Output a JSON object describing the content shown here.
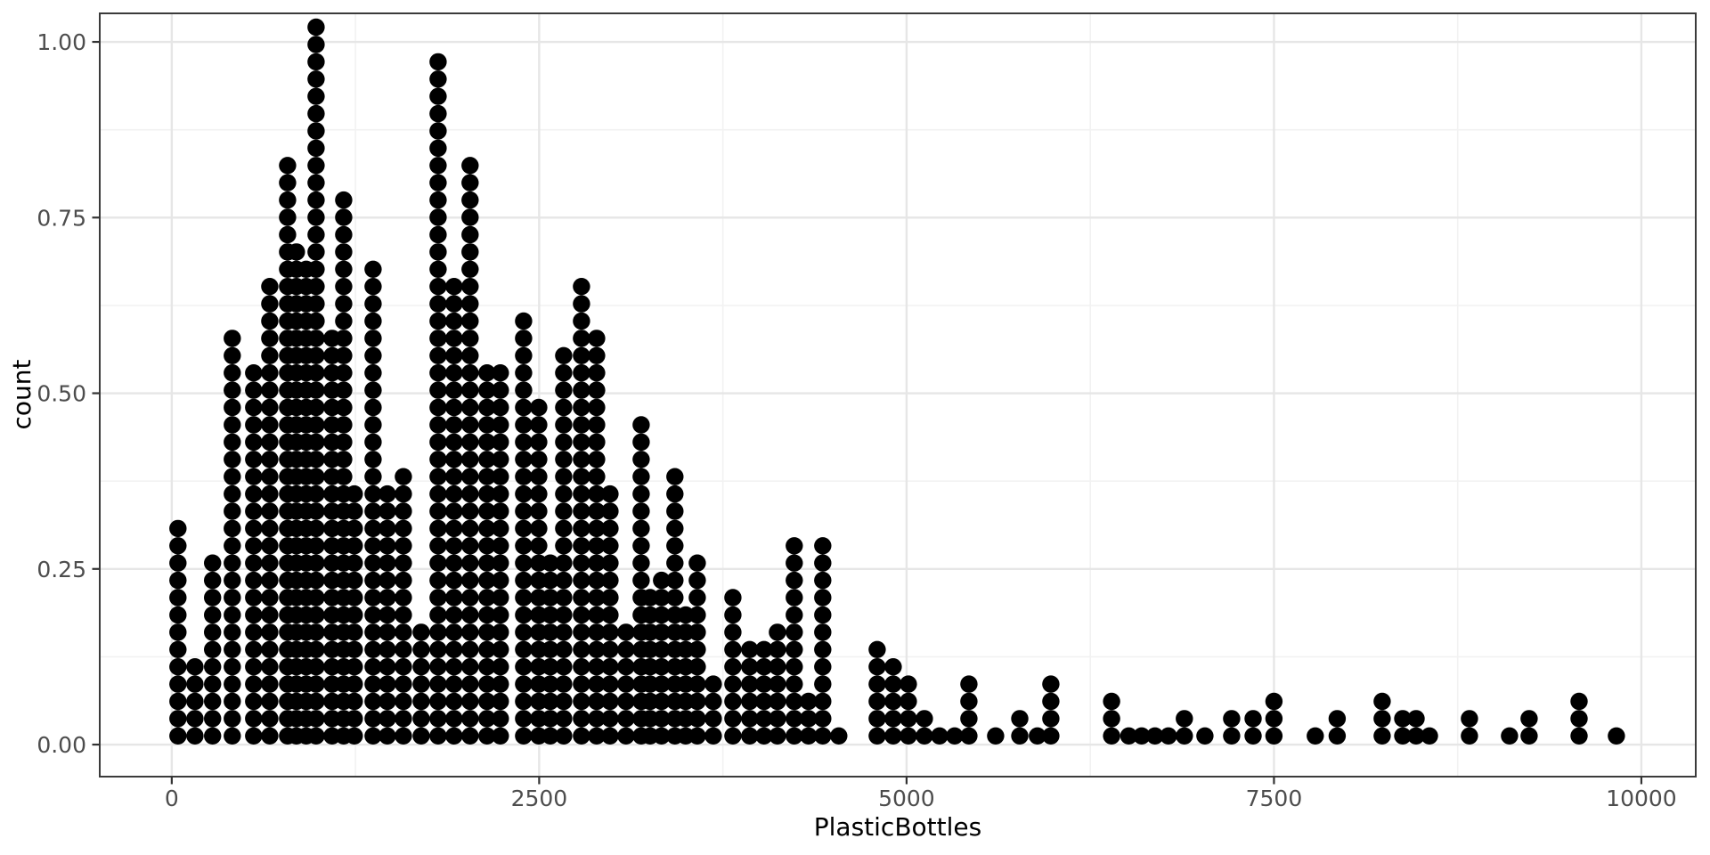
{
  "figure": {
    "background": "#ffffff",
    "panel_background": "#ffffff",
    "panel_border_color": "#3b3b3b",
    "grid_major_color": "#e6e6e6",
    "grid_minor_color": "#f2f2f2",
    "tick_color": "#333333",
    "tick_label_color": "#4d4d4d",
    "axis_title_color": "#000000",
    "dot_color": "#000000"
  },
  "chart_data": {
    "type": "dotplot",
    "title": "",
    "xlabel": "PlasticBottles",
    "ylabel": "count",
    "grid": "on",
    "legend": "none",
    "x_axis": {
      "ticks": [
        0,
        2500,
        5000,
        7500,
        10000
      ],
      "tick_labels": [
        "0",
        "2500",
        "5000",
        "7500",
        "10000"
      ],
      "minor_ticks": [
        1250,
        3750,
        6250,
        8750
      ],
      "range": [
        -490,
        10370
      ]
    },
    "y_axis": {
      "ticks": [
        0,
        0.25,
        0.5,
        0.75,
        1.0
      ],
      "tick_labels": [
        "0.00",
        "0.25",
        "0.50",
        "0.75",
        "1.00"
      ],
      "minor_ticks": [
        0.125,
        0.375,
        0.625,
        0.875
      ],
      "range": [
        -0.0456,
        1.0406
      ]
    },
    "dot_diameter": 0.0246,
    "stacks_description": "Each entry is [PlasticBottles value of stack center, number of stacked dots]; dot stack height in y units = count * dot_diameter",
    "stacks": [
      [
        42,
        13
      ],
      [
        158,
        5
      ],
      [
        278,
        11
      ],
      [
        412,
        24
      ],
      [
        557,
        22
      ],
      [
        667,
        27
      ],
      [
        788,
        34
      ],
      [
        848,
        29
      ],
      [
        915,
        28
      ],
      [
        982,
        42
      ],
      [
        1091,
        24
      ],
      [
        1170,
        32
      ],
      [
        1242,
        15
      ],
      [
        1370,
        28
      ],
      [
        1467,
        15
      ],
      [
        1576,
        16
      ],
      [
        1697,
        7
      ],
      [
        1812,
        40
      ],
      [
        1921,
        27
      ],
      [
        2030,
        34
      ],
      [
        2145,
        22
      ],
      [
        2236,
        22
      ],
      [
        2394,
        25
      ],
      [
        2497,
        20
      ],
      [
        2576,
        11
      ],
      [
        2667,
        23
      ],
      [
        2788,
        27
      ],
      [
        2891,
        24
      ],
      [
        2982,
        15
      ],
      [
        3091,
        7
      ],
      [
        3194,
        19
      ],
      [
        3255,
        9
      ],
      [
        3333,
        10
      ],
      [
        3424,
        16
      ],
      [
        3497,
        8
      ],
      [
        3576,
        11
      ],
      [
        3685,
        4
      ],
      [
        3818,
        9
      ],
      [
        3933,
        6
      ],
      [
        4030,
        6
      ],
      [
        4121,
        7
      ],
      [
        4236,
        12
      ],
      [
        4333,
        3
      ],
      [
        4430,
        12
      ],
      [
        4539,
        1
      ],
      [
        4800,
        6
      ],
      [
        4909,
        5
      ],
      [
        5012,
        4
      ],
      [
        5121,
        2
      ],
      [
        5224,
        1
      ],
      [
        5327,
        1
      ],
      [
        5424,
        4
      ],
      [
        5606,
        1
      ],
      [
        5770,
        2
      ],
      [
        5890,
        1
      ],
      [
        5982,
        4
      ],
      [
        6395,
        3
      ],
      [
        6512,
        1
      ],
      [
        6600,
        1
      ],
      [
        6690,
        1
      ],
      [
        6782,
        1
      ],
      [
        6890,
        2
      ],
      [
        7030,
        1
      ],
      [
        7212,
        2
      ],
      [
        7358,
        2
      ],
      [
        7500,
        3
      ],
      [
        7781,
        1
      ],
      [
        7930,
        2
      ],
      [
        8236,
        3
      ],
      [
        8376,
        2
      ],
      [
        8467,
        2
      ],
      [
        8558,
        1
      ],
      [
        8830,
        2
      ],
      [
        9103,
        1
      ],
      [
        9236,
        2
      ],
      [
        9576,
        3
      ],
      [
        9830,
        1
      ]
    ]
  }
}
